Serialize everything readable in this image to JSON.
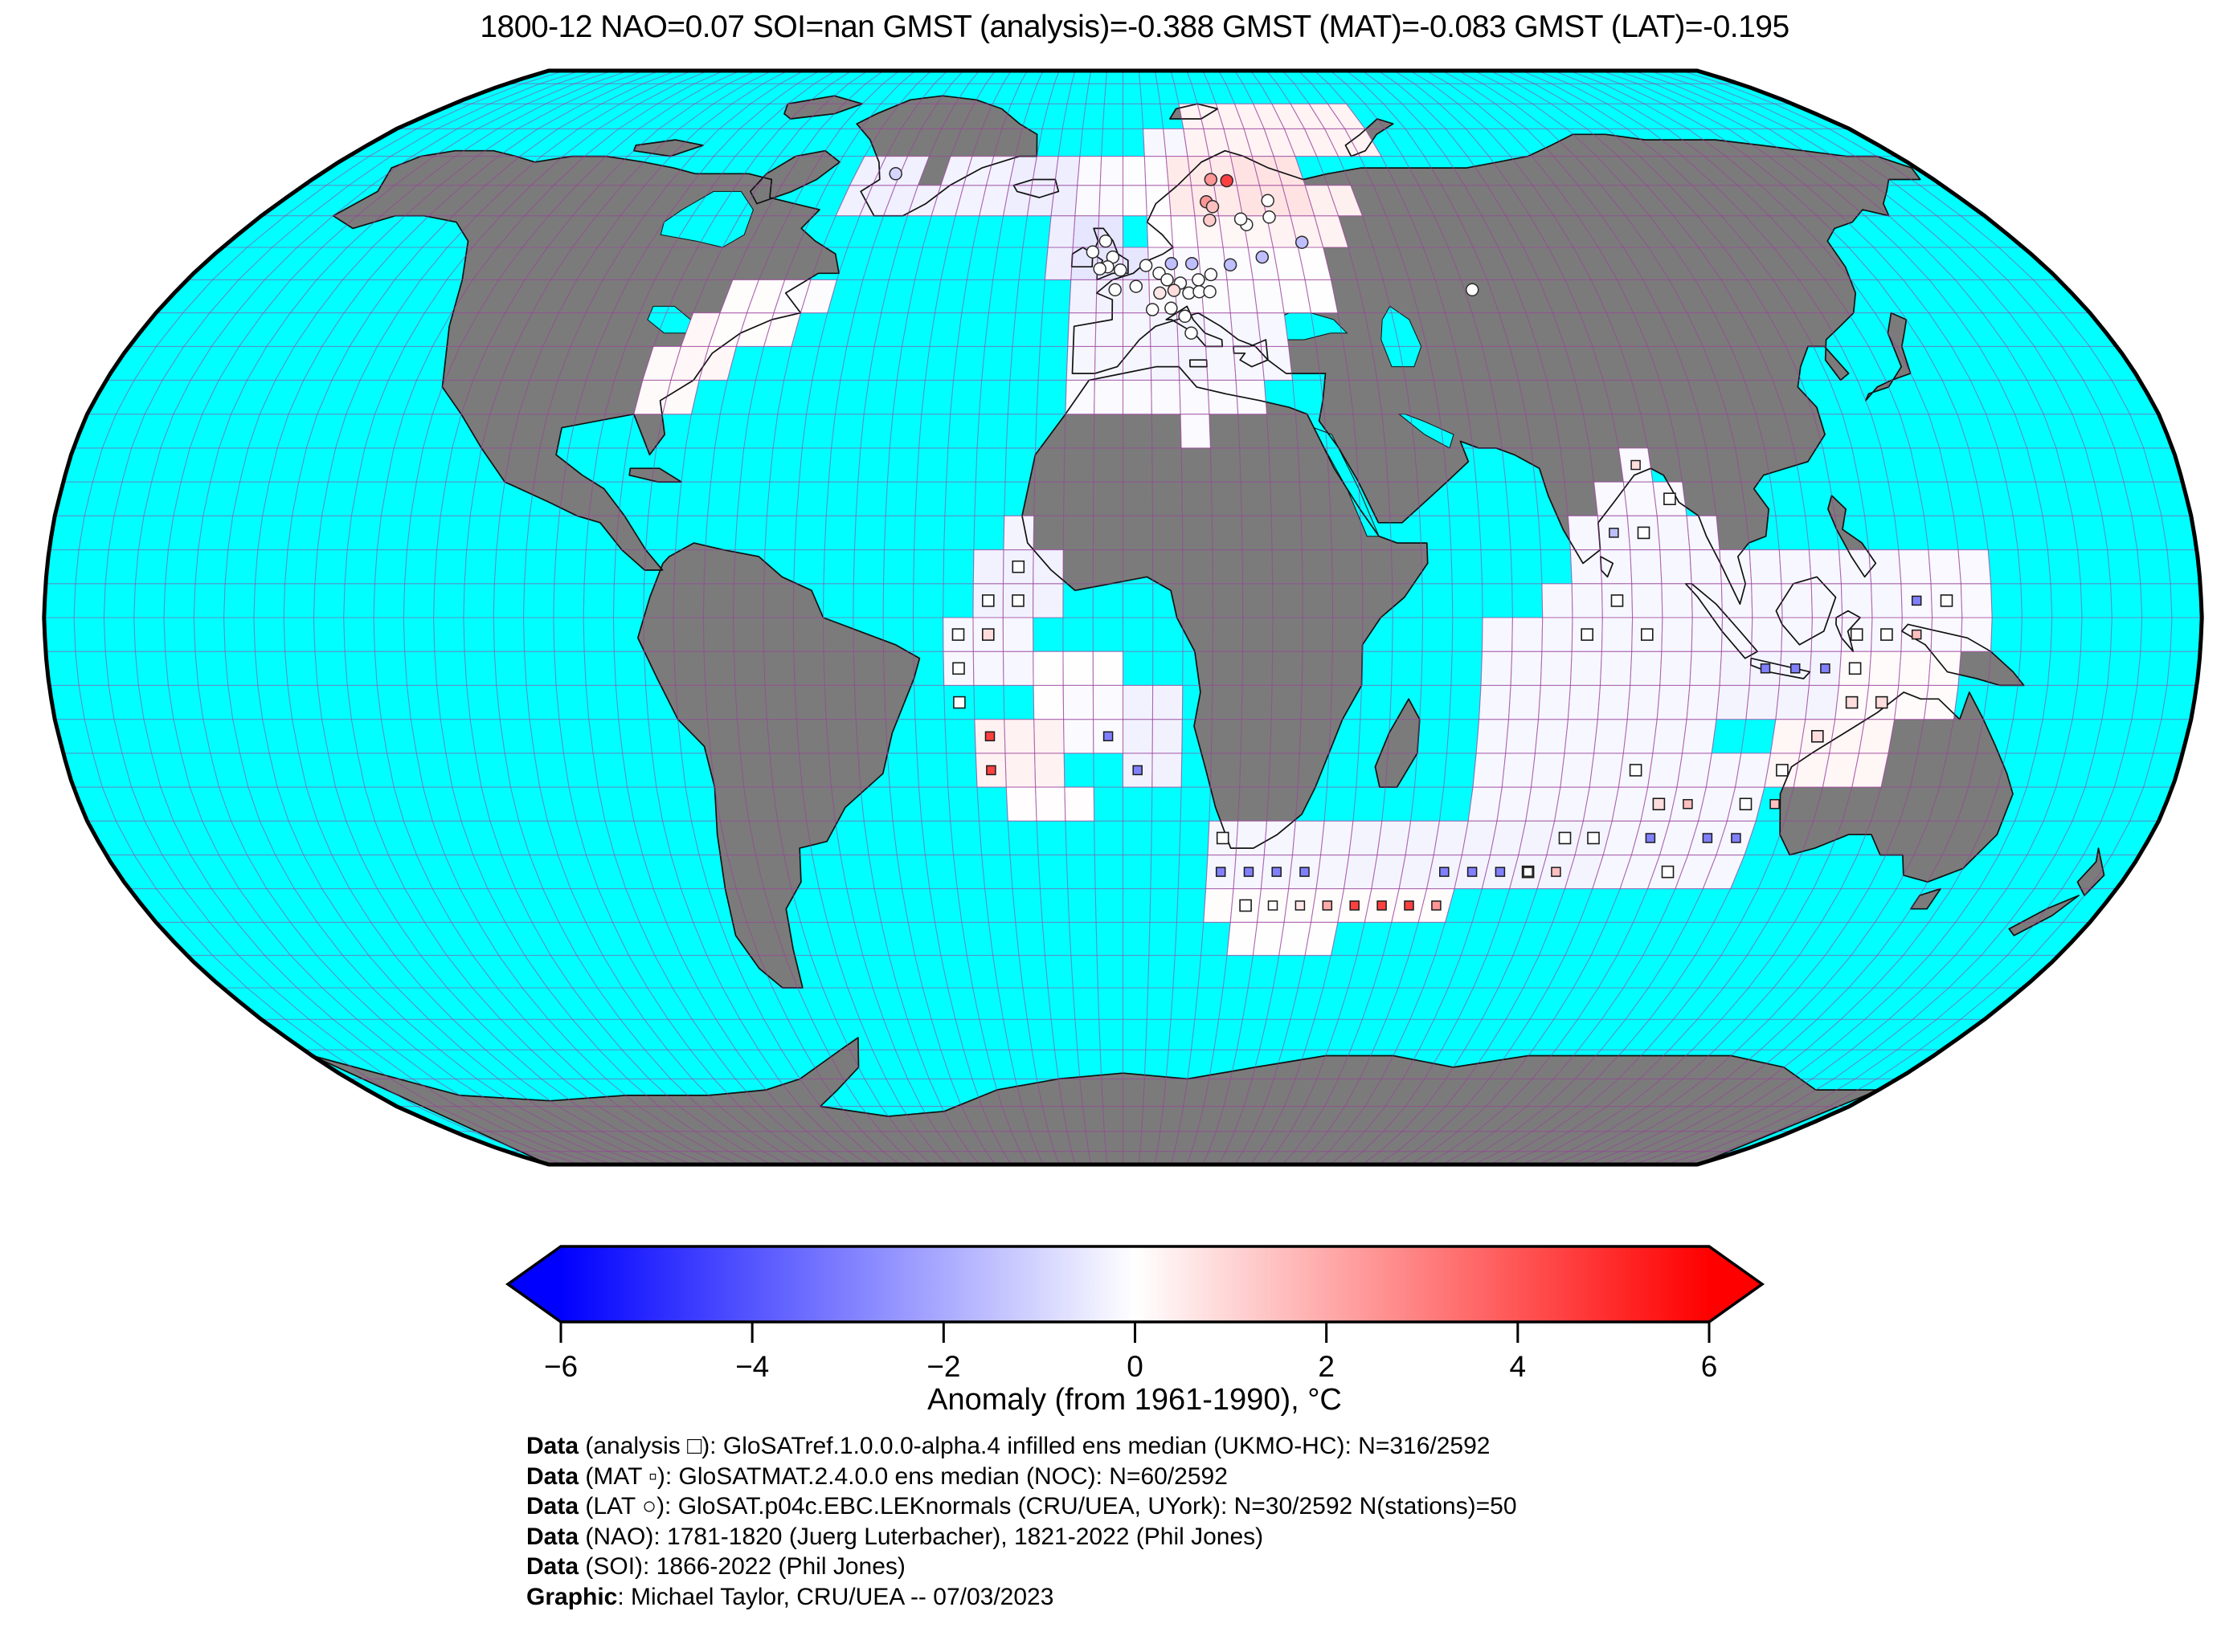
{
  "title": "1800-12 NAO=0.07 SOI=nan GMST (analysis)=-0.388 GMST (MAT)=-0.083 GMST (LAT)=-0.195",
  "colorbar": {
    "label": "Anomaly (from 1961-1990), °C",
    "tick_labels": [
      "−6",
      "−4",
      "−2",
      "0",
      "2",
      "4",
      "6"
    ],
    "tick_values": [
      -6,
      -4,
      -2,
      0,
      2,
      4,
      6
    ],
    "vmin": -6,
    "vmax": 6,
    "extend": "both",
    "color_stops": [
      "#0000ff",
      "#ffffff",
      "#ff0000"
    ]
  },
  "credits": [
    {
      "prefix": "Data",
      "text": " (analysis □): GloSATref.1.0.0.0-alpha.4 infilled ens median (UKMO-HC): N=316/2592"
    },
    {
      "prefix": "Data",
      "text": " (MAT ▫): GloSATMAT.2.4.0.0 ens median (NOC): N=60/2592"
    },
    {
      "prefix": "Data",
      "text": " (LAT ○): GloSAT.p04c.EBC.LEKnormals (CRU/UEA, UYork): N=30/2592 N(stations)=50"
    },
    {
      "prefix": "Data",
      "text": " (NAO): 1781-1820 (Juerg Luterbacher), 1821-2022 (Phil Jones)"
    },
    {
      "prefix": "Data",
      "text": " (SOI): 1866-2022 (Phil Jones)"
    },
    {
      "prefix": "Graphic",
      "text": ": Michael Taylor, CRU/UEA -- 07/03/2023"
    }
  ],
  "map_style": {
    "ocean": "#00ffff",
    "land": "#7b7b7b",
    "coast": "#111111",
    "graticule": "#9b3d9b",
    "cell_edge": "#a14fa1",
    "border": "#000000",
    "graticule_step_deg": 5
  },
  "chart_data": {
    "type": "heatmap",
    "projection": "robinson",
    "cell_size_deg": 5,
    "anomaly_units": "°C vs 1961-1990",
    "vmin": -6,
    "vmax": 6,
    "cell_regions": [
      [
        -60,
        -45,
        60,
        70,
        -0.35
      ],
      [
        -45,
        -40,
        60,
        65,
        -0.3
      ],
      [
        -40,
        -25,
        60,
        70,
        -0.28
      ],
      [
        -25,
        -10,
        60,
        70,
        -0.4
      ],
      [
        -10,
        0,
        60,
        70,
        -0.12
      ],
      [
        0,
        10,
        60,
        70,
        -0.05
      ],
      [
        5,
        20,
        70,
        75,
        -0.2
      ],
      [
        15,
        60,
        70,
        80,
        0.28
      ],
      [
        -85,
        -75,
        30,
        40,
        0.12
      ],
      [
        -80,
        -70,
        35,
        45,
        0.18
      ],
      [
        -75,
        -60,
        40,
        50,
        0.06
      ],
      [
        -65,
        -55,
        45,
        50,
        -0.08
      ],
      [
        -15,
        -10,
        50,
        60,
        -0.4
      ],
      [
        -10,
        5,
        50,
        60,
        -0.6
      ],
      [
        -10,
        5,
        45,
        50,
        -0.3
      ],
      [
        -10,
        5,
        35,
        45,
        -0.22
      ],
      [
        5,
        15,
        45,
        55,
        -0.15
      ],
      [
        5,
        15,
        35,
        45,
        -0.25
      ],
      [
        15,
        30,
        35,
        45,
        -0.18
      ],
      [
        15,
        30,
        45,
        55,
        -0.08
      ],
      [
        30,
        40,
        45,
        55,
        0.02
      ],
      [
        5,
        15,
        55,
        60,
        0.0
      ],
      [
        15,
        30,
        55,
        60,
        0.2
      ],
      [
        30,
        45,
        55,
        60,
        0.3
      ],
      [
        10,
        25,
        60,
        70,
        0.5
      ],
      [
        25,
        40,
        60,
        70,
        0.65
      ],
      [
        40,
        50,
        60,
        65,
        0.35
      ],
      [
        -10,
        25,
        30,
        35,
        -0.12
      ],
      [
        10,
        15,
        25,
        30,
        -0.12
      ],
      [
        -25,
        -10,
        0,
        10,
        -0.3
      ],
      [
        -20,
        -15,
        10,
        15,
        -0.25
      ],
      [
        -30,
        -15,
        -10,
        0,
        -0.2
      ],
      [
        -15,
        0,
        -15,
        -5,
        -0.02
      ],
      [
        -25,
        -10,
        -25,
        -15,
        0.3
      ],
      [
        -10,
        0,
        -20,
        -10,
        -0.1
      ],
      [
        0,
        10,
        -25,
        -10,
        -0.3
      ],
      [
        -20,
        -5,
        -30,
        -25,
        0.05
      ],
      [
        85,
        90,
        20,
        25,
        -0.15
      ],
      [
        80,
        95,
        15,
        20,
        -0.15
      ],
      [
        75,
        100,
        10,
        15,
        -0.18
      ],
      [
        75,
        105,
        5,
        10,
        -0.2
      ],
      [
        70,
        115,
        0,
        5,
        -0.2
      ],
      [
        95,
        130,
        -5,
        10,
        -0.18
      ],
      [
        130,
        145,
        -5,
        10,
        -0.14
      ],
      [
        90,
        120,
        -15,
        -5,
        -0.25
      ],
      [
        120,
        140,
        -15,
        -5,
        0.1
      ],
      [
        110,
        130,
        -25,
        -15,
        0.2
      ],
      [
        85,
        110,
        -40,
        -20,
        -0.2
      ],
      [
        60,
        100,
        -30,
        0,
        -0.2
      ],
      [
        15,
        40,
        -40,
        -30,
        -0.22
      ],
      [
        40,
        85,
        -40,
        -30,
        -0.25
      ],
      [
        15,
        60,
        -45,
        -40,
        0.08
      ],
      [
        20,
        40,
        -50,
        -45,
        0.02
      ]
    ],
    "cell_holes": [
      [
        0,
        55
      ]
    ],
    "markers": {
      "analysis_squares": [
        [
          -17.5,
          7.5,
          0
        ],
        [
          -22.5,
          2.5,
          0
        ],
        [
          -17.5,
          2.5,
          0
        ],
        [
          -27.5,
          -2.5,
          0
        ],
        [
          -22.5,
          -2.5,
          0.8
        ],
        [
          -27.5,
          -7.5,
          0
        ],
        [
          -27.5,
          -12.5,
          0
        ],
        [
          92.5,
          17.5,
          0
        ],
        [
          87.5,
          12.5,
          0
        ],
        [
          82.5,
          2.5,
          0
        ],
        [
          87.5,
          -2.5,
          0
        ],
        [
          77.5,
          -2.5,
          0
        ],
        [
          122.5,
          -2.5,
          0
        ],
        [
          127.5,
          -2.5,
          0
        ],
        [
          137.5,
          2.5,
          0
        ],
        [
          122.5,
          -7.5,
          0
        ],
        [
          122.5,
          -12.5,
          0.8
        ],
        [
          127.5,
          -12.5,
          0.8
        ],
        [
          117.5,
          -17.5,
          0.8
        ],
        [
          112.5,
          -22.5,
          0
        ],
        [
          87.5,
          -22.5,
          0
        ],
        [
          92.5,
          -27.5,
          0.8
        ],
        [
          107.5,
          -27.5,
          0
        ],
        [
          97.5,
          -37.5,
          0
        ],
        [
          72.5,
          -37.5,
          0
        ],
        [
          77.5,
          -32.5,
          0
        ],
        [
          82.5,
          -32.5,
          0
        ],
        [
          17.5,
          -32.5,
          0
        ],
        [
          22.5,
          -42.5,
          0
        ]
      ],
      "mat_squares": [
        [
          -22.5,
          -17.5,
          4.5
        ],
        [
          -22.5,
          -22.5,
          4.5
        ],
        [
          -2.5,
          -17.5,
          -3
        ],
        [
          2.5,
          -22.5,
          -3
        ],
        [
          17.5,
          -37.5,
          -3
        ],
        [
          22.5,
          -37.5,
          -3
        ],
        [
          27.5,
          -37.5,
          -3
        ],
        [
          32.5,
          -37.5,
          -3
        ],
        [
          57.5,
          -37.5,
          -3
        ],
        [
          62.5,
          -37.5,
          -3
        ],
        [
          67.5,
          -37.5,
          -3
        ],
        [
          72.5,
          -37.5,
          0
        ],
        [
          77.5,
          -37.5,
          1.5
        ],
        [
          27.5,
          -42.5,
          0
        ],
        [
          32.5,
          -42.5,
          0.6
        ],
        [
          37.5,
          -42.5,
          2
        ],
        [
          42.5,
          -42.5,
          4.5
        ],
        [
          47.5,
          -42.5,
          4.5
        ],
        [
          52.5,
          -42.5,
          4.5
        ],
        [
          57.5,
          -42.5,
          2.5
        ],
        [
          102.5,
          -32.5,
          -3
        ],
        [
          107.5,
          -32.5,
          -3
        ],
        [
          92.5,
          -32.5,
          -3
        ],
        [
          112.5,
          -27.5,
          1.5
        ],
        [
          97.5,
          -27.5,
          1.5
        ],
        [
          107.5,
          -7.5,
          -3
        ],
        [
          112.5,
          -7.5,
          -3
        ],
        [
          117.5,
          -7.5,
          -3
        ],
        [
          87.5,
          22.5,
          0.8
        ],
        [
          82.5,
          12.5,
          -1.5
        ],
        [
          132.5,
          2.5,
          -3
        ],
        [
          132.5,
          -2.5,
          1.5
        ]
      ],
      "lat_circles": [
        [
          -6,
          54.3,
          0
        ],
        [
          -3.5,
          56,
          0
        ],
        [
          -2,
          53.5,
          0
        ],
        [
          -3,
          52,
          0
        ],
        [
          -0.5,
          51.5,
          0
        ],
        [
          -4.5,
          51.7,
          0
        ],
        [
          -1.5,
          48.5,
          0
        ],
        [
          2.5,
          49,
          0
        ],
        [
          5.5,
          45.5,
          0
        ],
        [
          7,
          48,
          0.6
        ],
        [
          4.5,
          52.2,
          0
        ],
        [
          7,
          51,
          0
        ],
        [
          9.5,
          52.5,
          -1.5
        ],
        [
          13.5,
          52.5,
          -1.5
        ],
        [
          8.5,
          50,
          0
        ],
        [
          11,
          49.5,
          0
        ],
        [
          9.7,
          48.4,
          0.8
        ],
        [
          12.5,
          48,
          0
        ],
        [
          14.5,
          48.2,
          0
        ],
        [
          16.5,
          48.2,
          0
        ],
        [
          9,
          45.7,
          0
        ],
        [
          11.5,
          44.5,
          0
        ],
        [
          12.5,
          42,
          0
        ],
        [
          14.5,
          50,
          0
        ],
        [
          17,
          50.8,
          0
        ],
        [
          21,
          52.3,
          -1.5
        ],
        [
          27.5,
          53.5,
          -1.5
        ],
        [
          18,
          59.3,
          1.2
        ],
        [
          19.5,
          66,
          2.5
        ],
        [
          23,
          65.8,
          4.5
        ],
        [
          17.8,
          62.3,
          2.5
        ],
        [
          19,
          61.5,
          1.5
        ],
        [
          31,
          62.5,
          0
        ],
        [
          25.5,
          58.6,
          0
        ],
        [
          24.5,
          59.5,
          0
        ],
        [
          30.5,
          59.8,
          0
        ],
        [
          -51,
          67,
          -1
        ],
        [
          66.5,
          48.5,
          0
        ],
        [
          36,
          55.8,
          -1.5
        ]
      ]
    }
  }
}
